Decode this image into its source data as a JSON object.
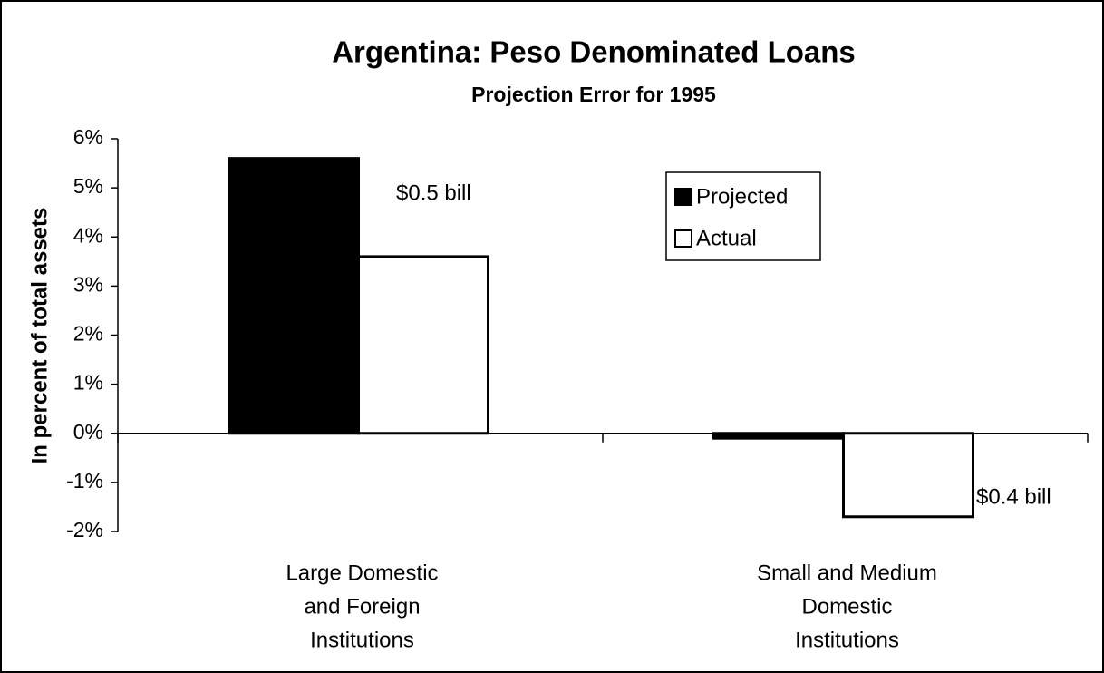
{
  "chart_data": {
    "type": "bar",
    "title": "Argentina: Peso Denominated Loans",
    "subtitle": "Projection Error for 1995",
    "ylabel": "In percent of total assets",
    "categories": [
      [
        "Large Domestic",
        "and Foreign",
        "Institutions"
      ],
      [
        "Small and Medium",
        "Domestic",
        "Institutions"
      ]
    ],
    "series": [
      {
        "name": "Projected",
        "color": "#000000",
        "values": [
          5.6,
          -0.1
        ]
      },
      {
        "name": "Actual",
        "color": "#ffffff",
        "values": [
          3.6,
          -1.7
        ]
      }
    ],
    "annotations": [
      "$0.5 bill",
      "$0.4 bill"
    ],
    "ylim": [
      -2,
      6
    ],
    "yticks": [
      {
        "value": -2,
        "label": "-2%"
      },
      {
        "value": -1,
        "label": "-1%"
      },
      {
        "value": 0,
        "label": "0%"
      },
      {
        "value": 1,
        "label": "1%"
      },
      {
        "value": 2,
        "label": "2%"
      },
      {
        "value": 3,
        "label": "3%"
      },
      {
        "value": 4,
        "label": "4%"
      },
      {
        "value": 5,
        "label": "5%"
      },
      {
        "value": 6,
        "label": "6%"
      }
    ],
    "grid": false
  }
}
